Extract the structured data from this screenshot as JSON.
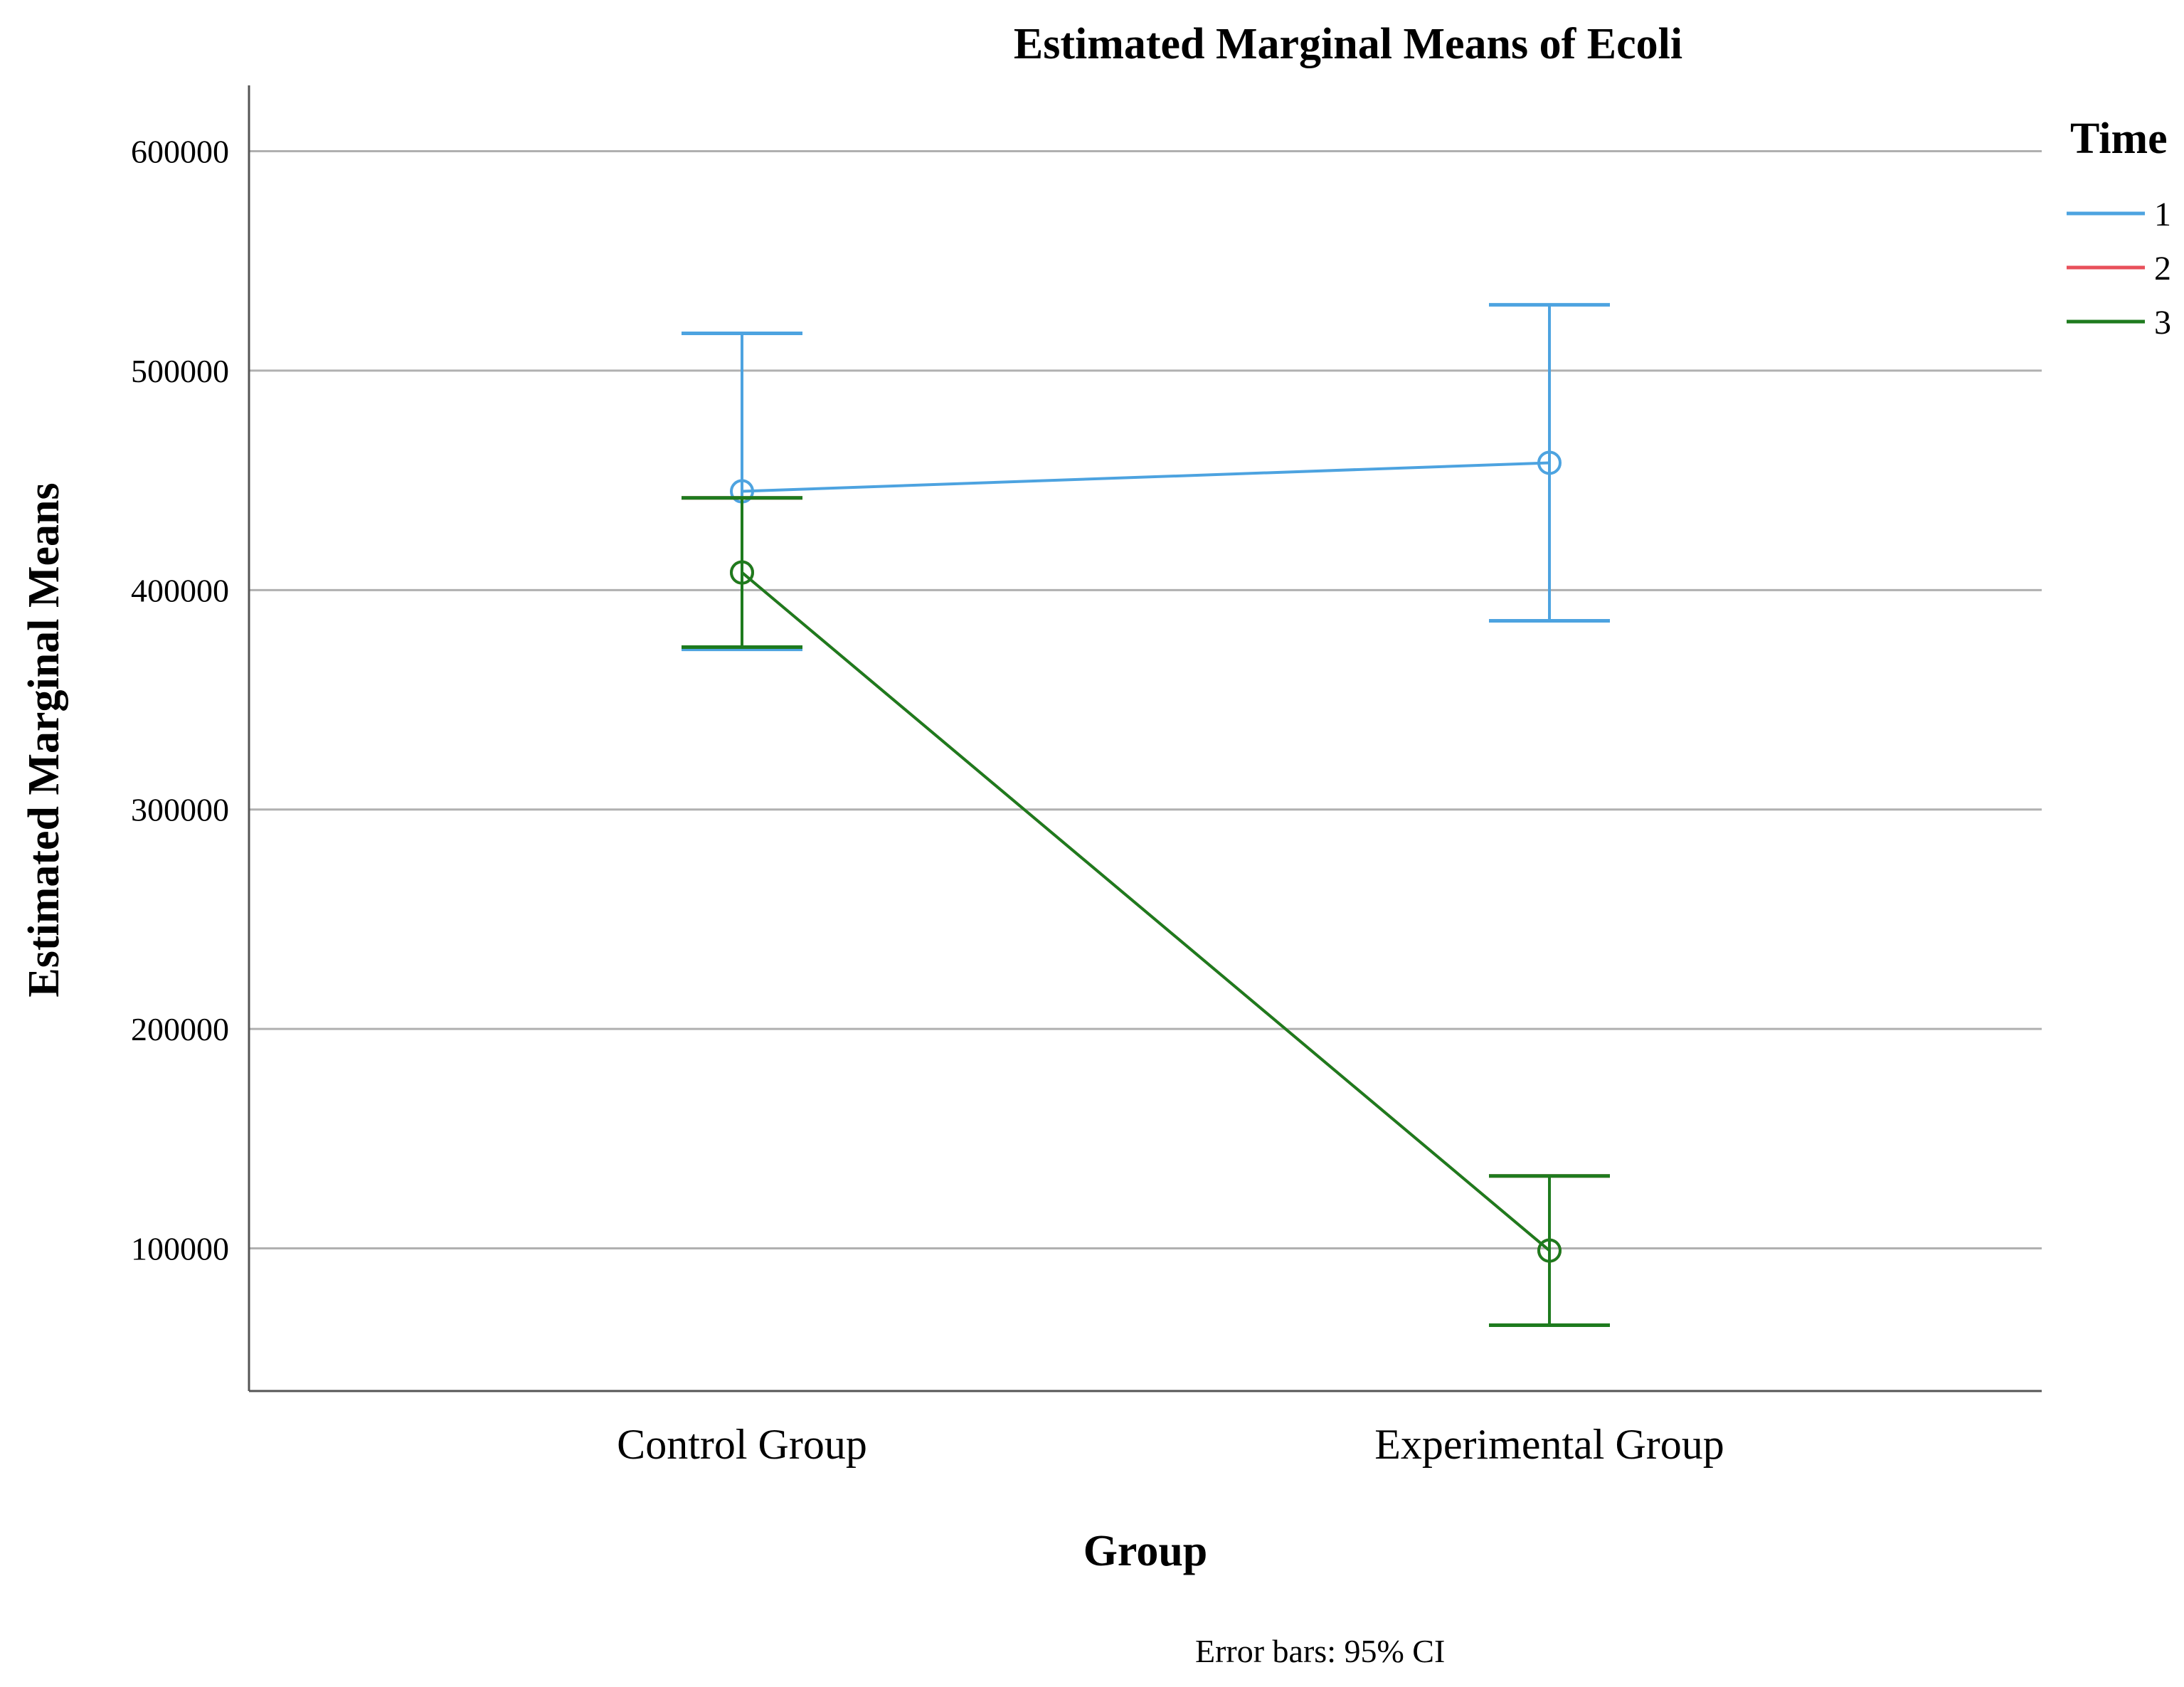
{
  "chart_data": {
    "type": "line",
    "title": "Estimated Marginal Means of Ecoli",
    "xlabel": "Group",
    "ylabel": "Estimated Marginal Means",
    "categories": [
      "Control Group",
      "Experimental Group"
    ],
    "ylim": [
      35000,
      630000
    ],
    "yticks": [
      100000,
      200000,
      300000,
      400000,
      500000,
      600000
    ],
    "ytick_labels": [
      "100000",
      "200000",
      "300000",
      "400000",
      "500000",
      "600000"
    ],
    "grid": true,
    "legend": {
      "title": "Time",
      "position": "top-right"
    },
    "series": [
      {
        "name": "1",
        "color": "#4da3e0",
        "values": [
          445000,
          458000
        ],
        "ci_low": [
          373000,
          386000
        ],
        "ci_high": [
          517000,
          530000
        ]
      },
      {
        "name": "2",
        "color": "#e8505b",
        "values": [
          408000,
          99000
        ],
        "ci_low": [
          374000,
          65000
        ],
        "ci_high": [
          442000,
          133000
        ]
      },
      {
        "name": "3",
        "color": "#1e7b1e",
        "values": [
          408000,
          99000
        ],
        "ci_low": [
          374000,
          65000
        ],
        "ci_high": [
          442000,
          133000
        ]
      }
    ],
    "footnote": "Error bars: 95% CI"
  }
}
